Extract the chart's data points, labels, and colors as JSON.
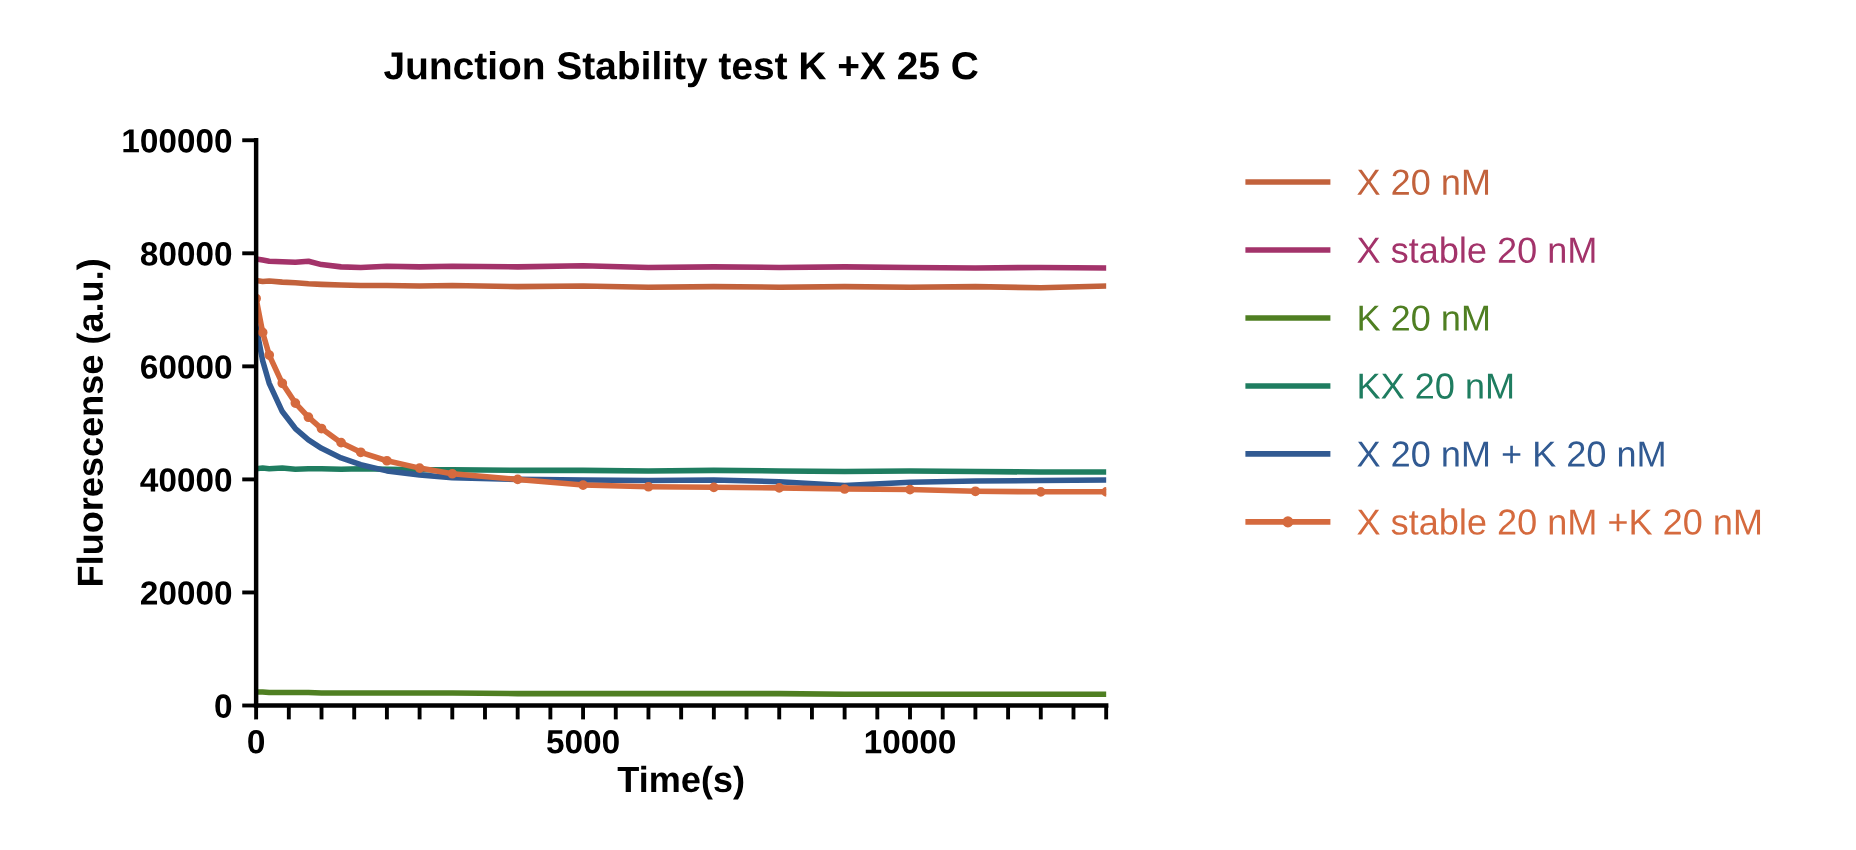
{
  "chart_data": {
    "type": "line",
    "title": "Junction Stability test K +X 25 C",
    "xlabel": "Time(s)",
    "ylabel": "Fluorescense (a.u.)",
    "xlim": [
      0,
      13000
    ],
    "ylim": [
      0,
      100000
    ],
    "xticks": [
      0,
      {
        "value": 500,
        "label": null
      },
      {
        "value": 1000,
        "label": null
      },
      {
        "value": 1500,
        "label": null
      },
      {
        "value": 2000,
        "label": null
      },
      {
        "value": 2500,
        "label": null
      },
      {
        "value": 3000,
        "label": null
      },
      {
        "value": 3500,
        "label": null
      },
      {
        "value": 4000,
        "label": null
      },
      {
        "value": 4500,
        "label": null
      },
      5000,
      {
        "value": 5500,
        "label": null
      },
      {
        "value": 6000,
        "label": null
      },
      {
        "value": 6500,
        "label": null
      },
      {
        "value": 7000,
        "label": null
      },
      {
        "value": 7500,
        "label": null
      },
      {
        "value": 8000,
        "label": null
      },
      {
        "value": 8500,
        "label": null
      },
      {
        "value": 9000,
        "label": null
      },
      {
        "value": 9500,
        "label": null
      },
      10000,
      {
        "value": 10500,
        "label": null
      },
      {
        "value": 11000,
        "label": null
      },
      {
        "value": 11500,
        "label": null
      },
      {
        "value": 12000,
        "label": null
      },
      {
        "value": 12500,
        "label": null
      },
      {
        "value": 13000,
        "label": null
      }
    ],
    "yticks": [
      0,
      20000,
      40000,
      60000,
      80000,
      100000
    ],
    "x": [
      0,
      100,
      200,
      400,
      600,
      800,
      1000,
      1300,
      1600,
      2000,
      2500,
      3000,
      4000,
      5000,
      6000,
      7000,
      8000,
      9000,
      10000,
      11000,
      12000,
      13000
    ],
    "grid": false,
    "legend": "right",
    "line_style": "solid",
    "series": [
      {
        "name": "X 20 nM",
        "color": "#c2623c",
        "marker": "none",
        "values": [
          75200,
          75000,
          75100,
          74900,
          74800,
          74600,
          74500,
          74400,
          74300,
          74300,
          74200,
          74300,
          74100,
          74200,
          74000,
          74100,
          74000,
          74100,
          74000,
          74100,
          73900,
          74200
        ]
      },
      {
        "name": "X stable 20 nM",
        "color": "#a3336a",
        "marker": "none",
        "values": [
          79000,
          78800,
          78600,
          78500,
          78400,
          78600,
          78000,
          77600,
          77500,
          77700,
          77600,
          77700,
          77600,
          77800,
          77500,
          77600,
          77500,
          77600,
          77500,
          77400,
          77500,
          77400
        ]
      },
      {
        "name": "K 20 nM",
        "color": "#4f7f22",
        "marker": "none",
        "values": [
          2400,
          2400,
          2300,
          2300,
          2300,
          2300,
          2200,
          2200,
          2200,
          2200,
          2200,
          2200,
          2100,
          2100,
          2100,
          2100,
          2100,
          2000,
          2000,
          2000,
          2000,
          2000
        ]
      },
      {
        "name": "KX 20 nM",
        "color": "#1f7d60",
        "marker": "none",
        "values": [
          41900,
          42000,
          41900,
          42000,
          41800,
          41900,
          41900,
          41800,
          41900,
          41800,
          41700,
          41700,
          41600,
          41600,
          41500,
          41600,
          41500,
          41400,
          41500,
          41400,
          41300,
          41300
        ]
      },
      {
        "name": "X 20 nM + K 20 nM",
        "color": "#315a92",
        "marker": "none",
        "values": [
          67000,
          61000,
          57000,
          52000,
          49000,
          47000,
          45500,
          43800,
          42600,
          41500,
          40800,
          40300,
          40000,
          39900,
          39800,
          39900,
          39600,
          38900,
          39500,
          39700,
          39800,
          39900
        ]
      },
      {
        "name": "X stable 20 nM +K 20 nM",
        "color": "#d56a3e",
        "marker": "circle",
        "values": [
          72000,
          66000,
          62000,
          57000,
          53500,
          51000,
          49000,
          46500,
          44800,
          43300,
          42000,
          41000,
          40000,
          39000,
          38700,
          38600,
          38500,
          38300,
          38200,
          37900,
          37800,
          37800
        ]
      }
    ]
  }
}
